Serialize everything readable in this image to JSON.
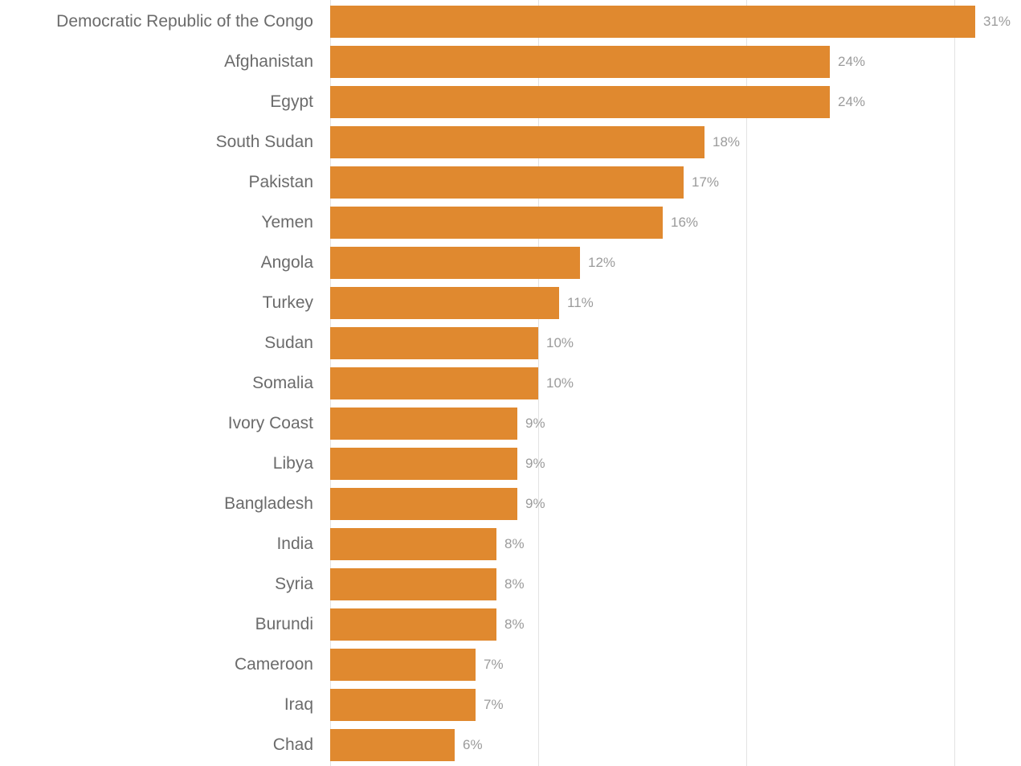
{
  "chart_data": {
    "type": "bar",
    "orientation": "horizontal",
    "categories": [
      "Democratic Republic of the Congo",
      "Afghanistan",
      "Egypt",
      "South Sudan",
      "Pakistan",
      "Yemen",
      "Angola",
      "Turkey",
      "Sudan",
      "Somalia",
      "Ivory Coast",
      "Libya",
      "Bangladesh",
      "India",
      "Syria",
      "Burundi",
      "Cameroon",
      "Iraq",
      "Chad"
    ],
    "values": [
      31,
      24,
      24,
      18,
      17,
      16,
      12,
      11,
      10,
      10,
      9,
      9,
      9,
      8,
      8,
      8,
      7,
      7,
      6
    ],
    "display_values": [
      "31%",
      "24%",
      "24%",
      "18%",
      "17%",
      "16%",
      "12%",
      "11%",
      "10%",
      "10%",
      "9%",
      "9%",
      "9%",
      "8%",
      "8%",
      "8%",
      "7%",
      "7%",
      "6%"
    ],
    "value_suffix": "%",
    "axis": {
      "xlim": [
        0,
        33.2
      ],
      "gridline_values": [
        0,
        10,
        20,
        30
      ],
      "tick_labels_visible": false
    },
    "legend": "none",
    "colors": {
      "bar": "#e0892f",
      "country_label": "#6b6b6b",
      "value_label": "#9b9b9b",
      "gridline": "#e3e3e3"
    }
  }
}
